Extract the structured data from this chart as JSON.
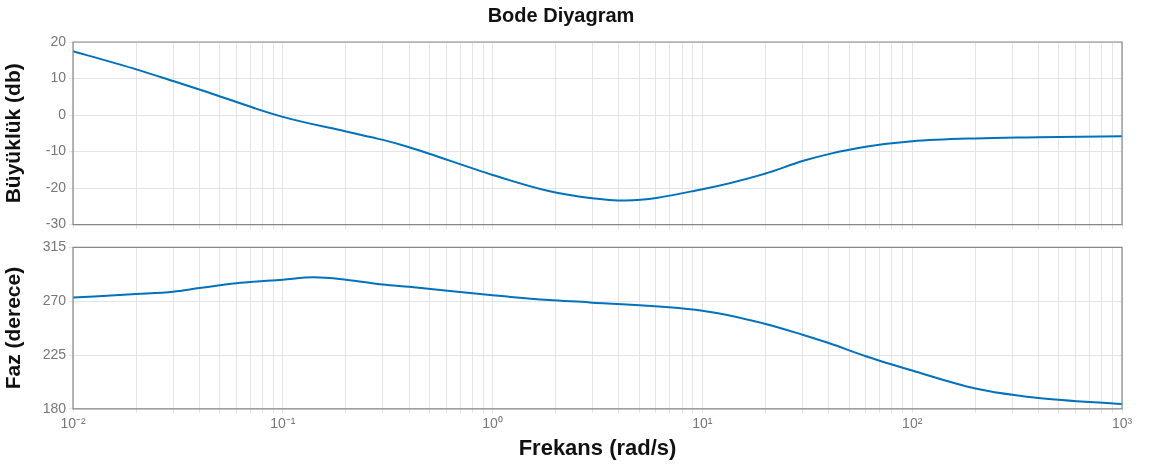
{
  "chart_data": [
    {
      "type": "line",
      "title": "Bode Diyagram",
      "ylabel": "Büyüklük (db)",
      "log": "x",
      "grid": true,
      "legend": false,
      "marker": "none",
      "line_style": "solid",
      "tick_labels": "y",
      "xlim": [
        0.01,
        1000
      ],
      "ylim": [
        -30,
        20
      ],
      "yticks": [
        -30,
        -20,
        -10,
        0,
        10,
        20
      ],
      "xticks": [
        {
          "value": 0.01,
          "label": null
        },
        {
          "value": 0.02,
          "label": null
        },
        {
          "value": 0.03,
          "label": null
        },
        {
          "value": 0.04,
          "label": null
        },
        {
          "value": 0.05,
          "label": null
        },
        {
          "value": 0.06,
          "label": null
        },
        {
          "value": 0.07,
          "label": null
        },
        {
          "value": 0.08,
          "label": null
        },
        {
          "value": 0.09,
          "label": null
        },
        {
          "value": 0.1,
          "label": null
        },
        {
          "value": 0.2,
          "label": null
        },
        {
          "value": 0.3,
          "label": null
        },
        {
          "value": 0.4,
          "label": null
        },
        {
          "value": 0.5,
          "label": null
        },
        {
          "value": 0.6,
          "label": null
        },
        {
          "value": 0.7,
          "label": null
        },
        {
          "value": 0.8,
          "label": null
        },
        {
          "value": 0.9,
          "label": null
        },
        {
          "value": 1,
          "label": null
        },
        {
          "value": 2,
          "label": null
        },
        {
          "value": 3,
          "label": null
        },
        {
          "value": 4,
          "label": null
        },
        {
          "value": 5,
          "label": null
        },
        {
          "value": 6,
          "label": null
        },
        {
          "value": 7,
          "label": null
        },
        {
          "value": 8,
          "label": null
        },
        {
          "value": 9,
          "label": null
        },
        {
          "value": 10,
          "label": null
        },
        {
          "value": 20,
          "label": null
        },
        {
          "value": 30,
          "label": null
        },
        {
          "value": 40,
          "label": null
        },
        {
          "value": 50,
          "label": null
        },
        {
          "value": 60,
          "label": null
        },
        {
          "value": 70,
          "label": null
        },
        {
          "value": 80,
          "label": null
        },
        {
          "value": 90,
          "label": null
        },
        {
          "value": 100,
          "label": null
        },
        {
          "value": 200,
          "label": null
        },
        {
          "value": 300,
          "label": null
        },
        {
          "value": 400,
          "label": null
        },
        {
          "value": 500,
          "label": null
        },
        {
          "value": 600,
          "label": null
        },
        {
          "value": 700,
          "label": null
        },
        {
          "value": 800,
          "label": null
        },
        {
          "value": 900,
          "label": null
        },
        {
          "value": 1000,
          "label": null
        }
      ],
      "x": [
        0.01,
        0.02,
        0.03,
        0.04,
        0.1,
        0.2,
        0.3,
        0.4,
        1,
        1.85,
        2.9,
        4.3,
        10,
        20,
        30,
        40,
        60,
        100,
        200,
        400,
        1000
      ],
      "series": [
        {
          "color": "#0072bd",
          "values": [
            17.5,
            12.5,
            9.3,
            7.0,
            -0.5,
            -4.5,
            -6.8,
            -8.8,
            -16.4,
            -20.8,
            -22.7,
            -23.4,
            -20.3,
            -16.0,
            -12.6,
            -10.7,
            -8.7,
            -7.2,
            -6.4,
            -6.1,
            -5.8
          ]
        }
      ]
    },
    {
      "type": "line",
      "xlabel": "Frekans (rad/s)",
      "ylabel": "Faz (derece)",
      "log": "x",
      "grid": true,
      "legend": false,
      "marker": "none",
      "line_style": "solid",
      "xlim": [
        0.01,
        1000
      ],
      "ylim": [
        180,
        315
      ],
      "yticks": [
        180,
        225,
        270,
        315
      ],
      "xticks": [
        {
          "value": 0.01,
          "label": "10⁻²"
        },
        {
          "value": 0.02,
          "label": null
        },
        {
          "value": 0.03,
          "label": null
        },
        {
          "value": 0.04,
          "label": null
        },
        {
          "value": 0.05,
          "label": null
        },
        {
          "value": 0.06,
          "label": null
        },
        {
          "value": 0.07,
          "label": null
        },
        {
          "value": 0.08,
          "label": null
        },
        {
          "value": 0.09,
          "label": null
        },
        {
          "value": 0.1,
          "label": "10⁻¹"
        },
        {
          "value": 0.2,
          "label": null
        },
        {
          "value": 0.3,
          "label": null
        },
        {
          "value": 0.4,
          "label": null
        },
        {
          "value": 0.5,
          "label": null
        },
        {
          "value": 0.6,
          "label": null
        },
        {
          "value": 0.7,
          "label": null
        },
        {
          "value": 0.8,
          "label": null
        },
        {
          "value": 0.9,
          "label": null
        },
        {
          "value": 1,
          "label": "10⁰"
        },
        {
          "value": 2,
          "label": null
        },
        {
          "value": 3,
          "label": null
        },
        {
          "value": 4,
          "label": null
        },
        {
          "value": 5,
          "label": null
        },
        {
          "value": 6,
          "label": null
        },
        {
          "value": 7,
          "label": null
        },
        {
          "value": 8,
          "label": null
        },
        {
          "value": 9,
          "label": null
        },
        {
          "value": 10,
          "label": "10¹"
        },
        {
          "value": 20,
          "label": null
        },
        {
          "value": 30,
          "label": null
        },
        {
          "value": 40,
          "label": null
        },
        {
          "value": 50,
          "label": null
        },
        {
          "value": 60,
          "label": null
        },
        {
          "value": 70,
          "label": null
        },
        {
          "value": 80,
          "label": null
        },
        {
          "value": 90,
          "label": null
        },
        {
          "value": 100,
          "label": "10²"
        },
        {
          "value": 200,
          "label": null
        },
        {
          "value": 300,
          "label": null
        },
        {
          "value": 400,
          "label": null
        },
        {
          "value": 500,
          "label": null
        },
        {
          "value": 600,
          "label": null
        },
        {
          "value": 700,
          "label": null
        },
        {
          "value": 800,
          "label": null
        },
        {
          "value": 900,
          "label": null
        },
        {
          "value": 1000,
          "label": "10³"
        }
      ],
      "x": [
        0.01,
        0.02,
        0.03,
        0.04,
        0.06,
        0.1,
        0.14,
        0.2,
        0.3,
        0.4,
        1,
        1.85,
        2.9,
        10,
        20,
        30,
        40,
        60,
        100,
        200,
        400,
        1000
      ],
      "series": [
        {
          "color": "#0072bd",
          "values": [
            273,
            276,
            278,
            281,
            285,
            288,
            290,
            288,
            284,
            282,
            275,
            271,
            269,
            262,
            251,
            242,
            235,
            224,
            212,
            197,
            189,
            184
          ]
        }
      ]
    }
  ]
}
